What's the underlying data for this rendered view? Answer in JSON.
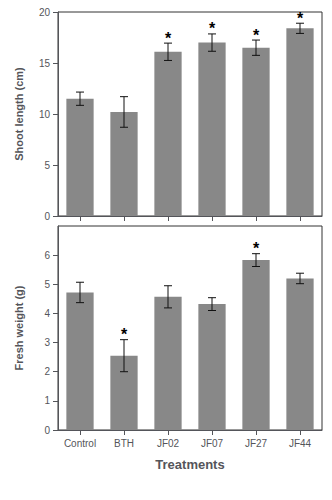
{
  "chart_data": [
    {
      "type": "bar",
      "categories": [
        "Control",
        "BTH",
        "JF02",
        "JF07",
        "JF27",
        "JF44"
      ],
      "values": [
        11.5,
        10.2,
        16.1,
        17.0,
        16.5,
        18.4
      ],
      "errors": [
        0.65,
        1.5,
        0.85,
        0.85,
        0.75,
        0.5
      ],
      "color": "#888888",
      "ylabel": "Shoot length (cm)",
      "ylim": [
        0,
        20
      ],
      "yticks": [
        0,
        5,
        10,
        15,
        20
      ],
      "grid": false,
      "tick_labels": "y",
      "annotations": [
        {
          "category": "JF02",
          "text": "*"
        },
        {
          "category": "JF07",
          "text": "*"
        },
        {
          "category": "JF27",
          "text": "*"
        },
        {
          "category": "JF44",
          "text": "*"
        }
      ]
    },
    {
      "type": "bar",
      "categories": [
        "Control",
        "BTH",
        "JF02",
        "JF07",
        "JF27",
        "JF44"
      ],
      "values": [
        4.72,
        2.55,
        4.57,
        4.32,
        5.83,
        5.2
      ],
      "errors": [
        0.35,
        0.55,
        0.38,
        0.22,
        0.22,
        0.18
      ],
      "color": "#888888",
      "xlabel": "Treatments",
      "ylabel": "Fresh weight (g)",
      "ylim": [
        0,
        7
      ],
      "yticks": [
        0,
        1,
        2,
        3,
        4,
        5,
        6
      ],
      "grid": false,
      "annotations": [
        {
          "category": "BTH",
          "text": "*"
        },
        {
          "category": "JF27",
          "text": "*"
        }
      ]
    }
  ]
}
